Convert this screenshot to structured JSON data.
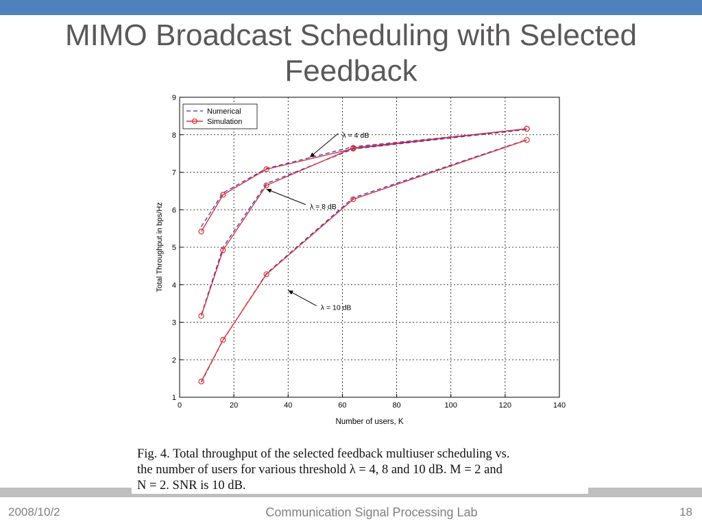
{
  "slide": {
    "title_line1": "MIMO Broadcast Scheduling with Selected",
    "title_line2": "Feedback",
    "caption_line1": "Fig. 4.   Total throughput of the selected feedback multiuser scheduling vs.",
    "caption_line2": "the number of users for various threshold λ = 4, 8 and 10 dB. M = 2 and",
    "caption_line3": "N = 2. SNR is 10 dB.",
    "footer_date": "2008/10/2",
    "footer_lab": "Communication Signal Processing Lab",
    "footer_page": "18",
    "colors": {
      "topbar": "#4f81bd",
      "bottombar": "#bfbfbf",
      "numerical": "#3333cc",
      "simulation": "#e03030"
    }
  },
  "chart_data": {
    "type": "line",
    "title": "",
    "xlabel": "Number of users, K",
    "ylabel": "Total Throughput in bps/Hz",
    "xlim": [
      0,
      140
    ],
    "ylim": [
      1,
      9
    ],
    "xticks": [
      0,
      20,
      40,
      60,
      80,
      100,
      120,
      140
    ],
    "yticks": [
      1,
      2,
      3,
      4,
      5,
      6,
      7,
      8,
      9
    ],
    "grid": true,
    "legend_position": "top-left",
    "legend": [
      "Numerical",
      "Simulation"
    ],
    "x": [
      8,
      16,
      32,
      64,
      128
    ],
    "series": [
      {
        "name": "Numerical",
        "group": "λ = 4 dB",
        "style": "dashed",
        "values": [
          5.55,
          6.45,
          7.1,
          7.68,
          8.15
        ]
      },
      {
        "name": "Simulation",
        "group": "λ = 4 dB",
        "style": "solid-circle",
        "values": [
          5.42,
          6.4,
          7.08,
          7.63,
          8.16
        ]
      },
      {
        "name": "Numerical",
        "group": "λ = 8 dB",
        "style": "dashed",
        "values": [
          3.2,
          5.0,
          6.7,
          7.62,
          8.14
        ]
      },
      {
        "name": "Simulation",
        "group": "λ = 8 dB",
        "style": "solid-circle",
        "values": [
          3.17,
          4.92,
          6.65,
          7.65,
          8.16
        ]
      },
      {
        "name": "Numerical",
        "group": "λ = 10 dB",
        "style": "dashed",
        "values": [
          1.4,
          2.52,
          4.3,
          6.32,
          7.87
        ]
      },
      {
        "name": "Simulation",
        "group": "λ = 10 dB",
        "style": "solid-circle",
        "values": [
          1.42,
          2.53,
          4.28,
          6.28,
          7.86
        ]
      }
    ],
    "annotations": [
      {
        "text": "λ = 4 dB",
        "x": 60,
        "y": 8.0,
        "arrow_to": [
          48,
          7.4
        ]
      },
      {
        "text": "λ = 8 dB",
        "x": 48,
        "y": 6.1,
        "arrow_to": [
          32,
          6.55
        ]
      },
      {
        "text": "λ = 10 dB",
        "x": 52,
        "y": 3.4,
        "arrow_to": [
          40,
          3.85
        ]
      }
    ]
  }
}
